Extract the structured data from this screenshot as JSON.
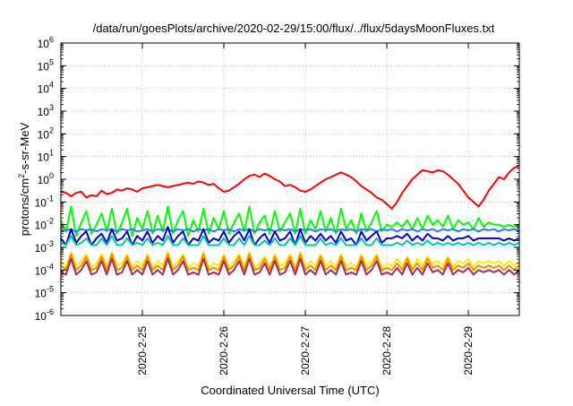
{
  "chart_data": {
    "type": "line",
    "title": "/data/run/goesPlots/archive/2020-02-29/15:00/flux/../flux/5daysMoonFluxes.txt",
    "xlabel": "Coordinated Universal Time (UTC)",
    "ylabel": {
      "prefix": "protons/cm",
      "sup": "2",
      "suffix": "-s-sr-MeV"
    },
    "y_scale": "log",
    "ylim_exp": [
      -6,
      6
    ],
    "y_ticks": [
      {
        "exp": -6,
        "base": "10",
        "sup": "-6"
      },
      {
        "exp": -5,
        "base": "10",
        "sup": "-5"
      },
      {
        "exp": -4,
        "base": "10",
        "sup": "-4"
      },
      {
        "exp": -3,
        "base": "10",
        "sup": "-3"
      },
      {
        "exp": -2,
        "base": "10",
        "sup": "-2"
      },
      {
        "exp": -1,
        "base": "10",
        "sup": "-1"
      },
      {
        "exp": 0,
        "base": "10",
        "sup": "0"
      },
      {
        "exp": 1,
        "base": "10",
        "sup": "1"
      },
      {
        "exp": 2,
        "base": "10",
        "sup": "2"
      },
      {
        "exp": 3,
        "base": "10",
        "sup": "3"
      },
      {
        "exp": 4,
        "base": "10",
        "sup": "4"
      },
      {
        "exp": 5,
        "base": "10",
        "sup": "5"
      },
      {
        "exp": 6,
        "base": "10",
        "sup": "6"
      }
    ],
    "x_range_days": [
      2020.0224,
      2020.02297
    ],
    "x_ticks": [
      "2020-2-25",
      "2020-2-26",
      "2020-2-27",
      "2020-2-28",
      "2020-2-29"
    ],
    "x_tick_hours": [
      24,
      48,
      72,
      96,
      120
    ],
    "x_range_hours": [
      0,
      135
    ],
    "x_origin": "2020-2-24 00:00",
    "grid": true,
    "series": [
      {
        "color": "#ff0000",
        "values_log10": [
          -0.55,
          -0.6,
          -0.75,
          -0.6,
          -0.55,
          -0.8,
          -0.7,
          -0.75,
          -0.5,
          -0.65,
          -0.6,
          -0.45,
          -0.5,
          -0.4,
          -0.45,
          -0.55,
          -0.4,
          -0.35,
          -0.3,
          -0.25,
          -0.3,
          -0.35,
          -0.3,
          -0.25,
          -0.2,
          -0.15,
          -0.2,
          -0.1,
          -0.15,
          -0.25,
          -0.2,
          -0.4,
          -0.55,
          -0.5,
          -0.35,
          -0.2,
          0.0,
          0.15,
          0.2,
          0.1,
          0.25,
          0.15,
          0.0,
          -0.1,
          -0.3,
          -0.25,
          -0.35,
          -0.5,
          -0.55,
          -0.45,
          -0.3,
          -0.15,
          0.0,
          0.1,
          0.2,
          0.3,
          0.2,
          0.1,
          -0.1,
          -0.3,
          -0.45,
          -0.6,
          -0.8,
          -0.9,
          -1.1,
          -1.3,
          -1.0,
          -0.6,
          -0.3,
          0.0,
          0.2,
          0.4,
          0.35,
          0.3,
          0.4,
          0.35,
          0.2,
          0.0,
          -0.2,
          -0.5,
          -0.8,
          -1.0,
          -1.2,
          -0.9,
          -0.5,
          -0.2,
          0.1,
          0.0,
          0.3,
          0.5,
          0.6
        ]
      },
      {
        "color": "#00ff00",
        "values_log10": [
          -1.8,
          -2.3,
          -1.2,
          -2.5,
          -1.9,
          -1.4,
          -2.4,
          -2.0,
          -1.5,
          -2.3,
          -1.3,
          -2.4,
          -1.9,
          -1.3,
          -2.5,
          -1.7,
          -2.2,
          -1.4,
          -2.4,
          -1.6,
          -2.3,
          -1.2,
          -2.4,
          -1.8,
          -1.4,
          -2.5,
          -1.8,
          -2.3,
          -1.3,
          -2.4,
          -1.7,
          -2.2,
          -1.4,
          -2.4,
          -1.9,
          -1.5,
          -2.3,
          -1.2,
          -2.4,
          -1.9,
          -1.6,
          -2.4,
          -1.4,
          -2.3,
          -1.9,
          -1.5,
          -2.4,
          -1.3,
          -2.4,
          -1.8,
          -2.2,
          -1.4,
          -2.3,
          -1.7,
          -2.4,
          -1.3,
          -2.2,
          -1.8,
          -2.4,
          -1.5,
          -2.3,
          -1.9,
          -1.4,
          -2.3,
          -2.0,
          -2.1,
          -1.9,
          -2.1,
          -1.8,
          -2.2,
          -1.7,
          -2.2,
          -1.6,
          -2.0,
          -1.8,
          -2.1,
          -1.6,
          -2.2,
          -1.8,
          -2.0,
          -1.9,
          -2.2,
          -1.7,
          -2.1,
          -1.9,
          -2.0,
          -2.0,
          -2.1,
          -2.0,
          -2.1,
          -2.0
        ]
      },
      {
        "color": "#3377ff",
        "values_log10": [
          -2.3,
          -2.25,
          -2.2,
          -2.3,
          -2.2,
          -2.25,
          -2.2,
          -2.3,
          -2.2,
          -2.25,
          -2.2,
          -2.3,
          -2.2,
          -2.25,
          -2.2,
          -2.3,
          -2.25,
          -2.2,
          -2.3,
          -2.2,
          -2.25,
          -2.2,
          -2.3,
          -2.2,
          -2.25,
          -2.2,
          -2.3,
          -2.2,
          -2.25,
          -2.2,
          -2.3,
          -2.2,
          -2.25,
          -2.2,
          -2.3,
          -2.2,
          -2.25,
          -2.2,
          -2.3,
          -2.2,
          -2.25,
          -2.2,
          -2.3,
          -2.2,
          -2.25,
          -2.2,
          -2.3,
          -2.2,
          -2.25,
          -2.2,
          -2.3,
          -2.2,
          -2.25,
          -2.2,
          -2.3,
          -2.2,
          -2.25,
          -2.2,
          -2.3,
          -2.2,
          -2.25,
          -2.2,
          -2.3,
          -2.2,
          -2.25,
          -2.2,
          -2.3,
          -2.2,
          -2.25,
          -2.2,
          -2.3,
          -2.2,
          -2.25,
          -2.2,
          -2.3,
          -2.2,
          -2.25,
          -2.2,
          -2.3,
          -2.2,
          -2.25,
          -2.2,
          -2.3,
          -2.2,
          -2.25,
          -2.2,
          -2.3,
          -2.2,
          -2.25,
          -2.2,
          -2.3
        ]
      },
      {
        "color": "#0000cc",
        "values_log10": [
          -2.6,
          -2.9,
          -2.2,
          -2.8,
          -2.5,
          -2.3,
          -2.9,
          -2.6,
          -2.4,
          -2.8,
          -2.2,
          -2.7,
          -2.6,
          -2.3,
          -2.9,
          -2.5,
          -2.7,
          -2.3,
          -2.8,
          -2.5,
          -2.7,
          -2.1,
          -2.8,
          -2.5,
          -2.3,
          -2.9,
          -2.6,
          -2.7,
          -2.2,
          -2.8,
          -2.6,
          -2.7,
          -2.3,
          -2.8,
          -2.5,
          -2.3,
          -2.7,
          -2.2,
          -2.9,
          -2.6,
          -2.4,
          -2.8,
          -2.3,
          -2.7,
          -2.6,
          -2.3,
          -2.9,
          -2.2,
          -2.8,
          -2.5,
          -2.7,
          -2.4,
          -2.7,
          -2.5,
          -2.8,
          -2.3,
          -2.7,
          -2.6,
          -2.9,
          -2.3,
          -2.7,
          -2.5,
          -2.3,
          -2.8,
          -2.6,
          -2.6,
          -2.5,
          -2.6,
          -2.4,
          -2.7,
          -2.5,
          -2.7,
          -2.4,
          -2.6,
          -2.6,
          -2.7,
          -2.5,
          -2.7,
          -2.6,
          -2.6,
          -2.5,
          -2.7,
          -2.6,
          -2.6,
          -2.6,
          -2.6,
          -2.6,
          -2.7,
          -2.6,
          -2.7,
          -2.6
        ]
      },
      {
        "color": "#00c8a0",
        "values_log10": [
          -2.8,
          -2.9,
          -2.5,
          -2.9,
          -2.8,
          -2.6,
          -2.9,
          -2.9,
          -2.6,
          -2.9,
          -2.5,
          -2.9,
          -2.9,
          -2.6,
          -2.9,
          -2.8,
          -2.9,
          -2.6,
          -2.9,
          -2.8,
          -2.9,
          -2.5,
          -2.9,
          -2.9,
          -2.6,
          -2.9,
          -2.9,
          -2.9,
          -2.5,
          -2.9,
          -2.9,
          -2.9,
          -2.6,
          -2.9,
          -2.9,
          -2.6,
          -2.9,
          -2.5,
          -2.9,
          -2.9,
          -2.7,
          -2.9,
          -2.6,
          -2.9,
          -2.9,
          -2.6,
          -2.9,
          -2.5,
          -2.9,
          -2.9,
          -2.9,
          -2.6,
          -2.9,
          -2.8,
          -2.9,
          -2.6,
          -2.9,
          -2.9,
          -2.9,
          -2.6,
          -2.9,
          -2.9,
          -2.6,
          -2.9,
          -2.9,
          -2.9,
          -2.8,
          -2.9,
          -2.7,
          -2.9,
          -2.8,
          -2.9,
          -2.7,
          -2.9,
          -2.8,
          -2.9,
          -2.8,
          -2.9,
          -2.8,
          -2.9,
          -2.8,
          -2.9,
          -2.8,
          -2.9,
          -2.8,
          -2.9,
          -2.8,
          -2.9,
          -2.8,
          -2.9,
          -2.8
        ]
      },
      {
        "color": "#ffee00",
        "values_log10": [
          -3.6,
          -3.9,
          -3.2,
          -3.8,
          -3.6,
          -3.3,
          -3.9,
          -3.7,
          -3.3,
          -3.9,
          -3.2,
          -3.8,
          -3.7,
          -3.3,
          -3.9,
          -3.6,
          -3.8,
          -3.3,
          -3.9,
          -3.6,
          -3.8,
          -3.2,
          -3.9,
          -3.6,
          -3.3,
          -3.9,
          -3.7,
          -3.8,
          -3.2,
          -3.9,
          -3.7,
          -3.8,
          -3.3,
          -3.9,
          -3.6,
          -3.3,
          -3.8,
          -3.2,
          -3.9,
          -3.7,
          -3.4,
          -3.9,
          -3.3,
          -3.8,
          -3.7,
          -3.3,
          -3.9,
          -3.2,
          -3.9,
          -3.6,
          -3.8,
          -3.3,
          -3.8,
          -3.6,
          -3.9,
          -3.3,
          -3.8,
          -3.7,
          -3.9,
          -3.3,
          -3.8,
          -3.6,
          -3.3,
          -3.9,
          -3.7,
          -3.8,
          -3.5,
          -3.8,
          -3.4,
          -3.9,
          -3.5,
          -3.8,
          -3.4,
          -3.7,
          -3.6,
          -3.8,
          -3.4,
          -3.9,
          -3.6,
          -3.7,
          -3.5,
          -3.9,
          -3.6,
          -3.7,
          -3.6,
          -3.7,
          -3.6,
          -3.8,
          -3.6,
          -3.8,
          -3.6
        ]
      },
      {
        "color": "#ff8800",
        "values_log10": [
          -3.8,
          -4.0,
          -3.3,
          -4.0,
          -3.8,
          -3.4,
          -4.0,
          -3.9,
          -3.4,
          -4.0,
          -3.3,
          -4.0,
          -3.9,
          -3.4,
          -4.0,
          -3.8,
          -4.0,
          -3.4,
          -4.0,
          -3.8,
          -4.0,
          -3.3,
          -4.0,
          -3.8,
          -3.4,
          -4.0,
          -3.9,
          -4.0,
          -3.3,
          -4.0,
          -3.9,
          -4.0,
          -3.4,
          -4.0,
          -3.8,
          -3.4,
          -4.0,
          -3.3,
          -4.0,
          -3.9,
          -3.5,
          -4.0,
          -3.4,
          -4.0,
          -3.9,
          -3.4,
          -4.0,
          -3.3,
          -4.0,
          -3.8,
          -4.0,
          -3.4,
          -4.0,
          -3.8,
          -4.0,
          -3.4,
          -4.0,
          -3.9,
          -4.0,
          -3.4,
          -4.0,
          -3.8,
          -3.4,
          -4.0,
          -3.9,
          -4.0,
          -3.7,
          -4.0,
          -3.5,
          -4.0,
          -3.7,
          -4.0,
          -3.5,
          -3.9,
          -3.8,
          -4.0,
          -3.5,
          -4.0,
          -3.8,
          -3.9,
          -3.7,
          -4.0,
          -3.8,
          -3.9,
          -3.8,
          -3.9,
          -3.8,
          -4.0,
          -3.8,
          -4.0,
          -3.8
        ]
      },
      {
        "color": "#993366",
        "values_log10": [
          -4.1,
          -4.2,
          -3.5,
          -4.2,
          -4.0,
          -3.6,
          -4.2,
          -4.1,
          -3.6,
          -4.2,
          -3.5,
          -4.2,
          -4.1,
          -3.6,
          -4.2,
          -4.0,
          -4.2,
          -3.6,
          -4.2,
          -4.0,
          -4.2,
          -3.5,
          -4.2,
          -4.0,
          -3.6,
          -4.2,
          -4.1,
          -4.2,
          -3.5,
          -4.2,
          -4.1,
          -4.2,
          -3.6,
          -4.2,
          -4.0,
          -3.6,
          -4.2,
          -3.5,
          -4.2,
          -4.1,
          -3.7,
          -4.2,
          -3.6,
          -4.2,
          -4.1,
          -3.6,
          -4.2,
          -3.5,
          -4.2,
          -4.0,
          -4.2,
          -3.6,
          -4.2,
          -4.0,
          -4.2,
          -3.6,
          -4.2,
          -4.1,
          -4.2,
          -3.6,
          -4.2,
          -4.0,
          -3.6,
          -4.2,
          -4.1,
          -4.2,
          -3.9,
          -4.2,
          -3.7,
          -4.2,
          -3.9,
          -4.2,
          -3.7,
          -4.1,
          -4.0,
          -4.2,
          -3.7,
          -4.2,
          -4.0,
          -4.1,
          -3.9,
          -4.2,
          -4.0,
          -4.1,
          -4.0,
          -4.1,
          -4.0,
          -4.2,
          -4.0,
          -4.2,
          -4.0
        ]
      }
    ]
  }
}
